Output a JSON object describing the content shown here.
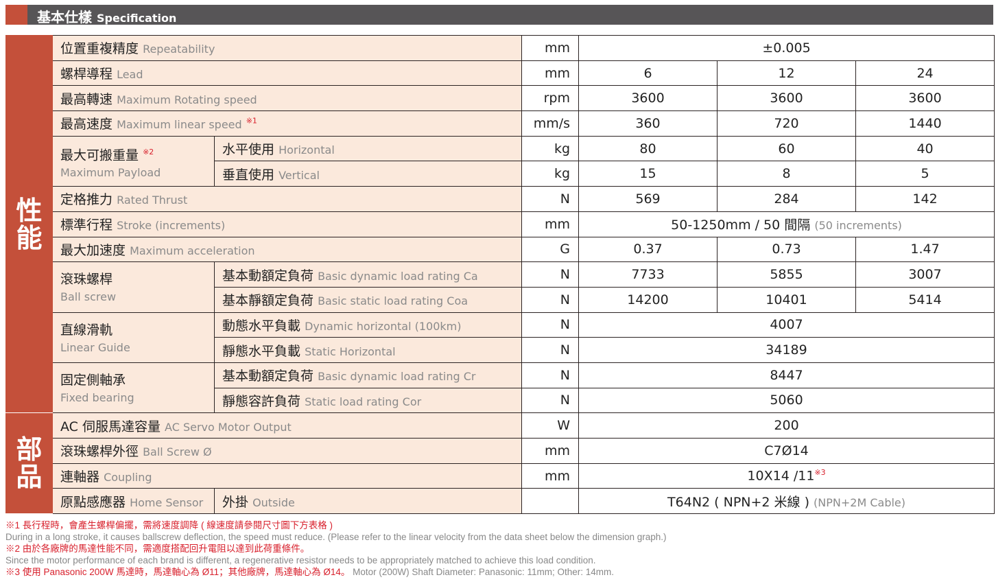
{
  "header": {
    "title_zh": "基本仕樣",
    "title_en": "Specification",
    "accent": "#c4503a",
    "bar": "#575557"
  },
  "sections": [
    {
      "label": "性能",
      "rows": 15
    },
    {
      "label": "部品",
      "rows": 4
    }
  ],
  "rows": [
    {
      "zh": "位置重複精度",
      "en": "Repeatability",
      "unit": "mm",
      "merged": "±0.005"
    },
    {
      "zh": "螺桿導程",
      "en": "Lead",
      "unit": "mm",
      "values": [
        "6",
        "12",
        "24"
      ]
    },
    {
      "zh": "最高轉速",
      "en": "Maximum Rotating speed",
      "unit": "rpm",
      "values": [
        "3600",
        "3600",
        "3600"
      ]
    },
    {
      "zh": "最高速度",
      "en": "Maximum linear speed",
      "note": "※1",
      "unit": "mm/s",
      "values": [
        "360",
        "720",
        "1440"
      ]
    },
    {
      "group": {
        "zh": "最大可搬重量",
        "en": "Maximum Payload",
        "note": "※2",
        "span": 2
      },
      "zh": "水平使用",
      "en": "Horizontal",
      "unit": "kg",
      "values": [
        "80",
        "60",
        "40"
      ]
    },
    {
      "ingroup": true,
      "zh": "垂直使用",
      "en": "Vertical",
      "unit": "kg",
      "values": [
        "15",
        "8",
        "5"
      ]
    },
    {
      "zh": "定格推力",
      "en": "Rated Thrust",
      "unit": "N",
      "values": [
        "569",
        "284",
        "142"
      ]
    },
    {
      "zh": "標準行程",
      "en": "Stroke (increments)",
      "unit": "mm",
      "merged": "50-1250mm / 50 間隔",
      "merged_en": "(50 increments)"
    },
    {
      "zh": "最大加速度",
      "en": "Maximum acceleration",
      "unit": "G",
      "values": [
        "0.37",
        "0.73",
        "1.47"
      ]
    },
    {
      "group": {
        "zh": "滾珠螺桿",
        "en": "Ball screw",
        "span": 2
      },
      "zh": "基本動額定負荷",
      "en": "Basic dynamic load rating Ca",
      "unit": "N",
      "values": [
        "7733",
        "5855",
        "3007"
      ]
    },
    {
      "ingroup": true,
      "zh": "基本靜額定負荷",
      "en": "Basic static load rating Coa",
      "unit": "N",
      "values": [
        "14200",
        "10401",
        "5414"
      ]
    },
    {
      "group": {
        "zh": "直線滑軌",
        "en": "Linear Guide",
        "span": 2
      },
      "zh": "動態水平負載",
      "en": "Dynamic horizontal (100km)",
      "unit": "N",
      "merged": "4007"
    },
    {
      "ingroup": true,
      "zh": "靜態水平負載",
      "en": "Static Horizontal",
      "unit": "N",
      "merged": "34189"
    },
    {
      "group": {
        "zh": "固定側軸承",
        "en": "Fixed bearing",
        "span": 2
      },
      "zh": "基本動額定負荷",
      "en": "Basic dynamic load rating Cr",
      "unit": "N",
      "merged": "8447"
    },
    {
      "ingroup": true,
      "zh": "靜態容許負荷",
      "en": "Static load rating Cor",
      "unit": "N",
      "merged": "5060"
    },
    {
      "zh": "AC 伺服馬達容量",
      "en": "AC Servo Motor Output",
      "unit": "W",
      "merged": "200"
    },
    {
      "zh": "滾珠螺桿外徑",
      "en": "Ball Screw Ø",
      "unit": "mm",
      "merged": "C7Ø14"
    },
    {
      "zh": "連軸器",
      "en": "Coupling",
      "unit": "mm",
      "merged": "10X14 /11",
      "merged_note": "※3"
    },
    {
      "group": {
        "zh": "原點感應器",
        "en": "Home Sensor",
        "inline": true,
        "span": 1
      },
      "zh": "外掛",
      "en": "Outside",
      "unit": "",
      "merged": "T64N2 ( NPN+2 米線 )",
      "merged_en": "(NPN+2M Cable)"
    }
  ],
  "footnotes": [
    {
      "text": "※1 長行程時，會產生螺桿偏擺，需將速度調降 ( 線速度請參閱尺寸圖下方表格 )",
      "cls": "r"
    },
    {
      "text": "During in a long stroke, it causes ballscrew deflection, the speed must reduce. (Please refer to the linear velocity from the data sheet below the dimension graph.)",
      "cls": "g"
    },
    {
      "text": "※2 由於各廠牌的馬達性能不同，需適度搭配回升電阻以達到此荷重條件。",
      "cls": "r"
    },
    {
      "text": "Since the motor performance of each brand is different, a regenerative resistor needs to be appropriately matched to achieve this load condition.",
      "cls": "g"
    },
    {
      "text": "※3 使用 Panasonic 200W 馬達時，馬達軸心為 Ø11；其他廠牌，馬達軸心為 Ø14。",
      "cls": "r",
      "tail": "Motor (200W) Shaft Diameter: Panasonic: 11mm; Other: 14mm."
    }
  ]
}
